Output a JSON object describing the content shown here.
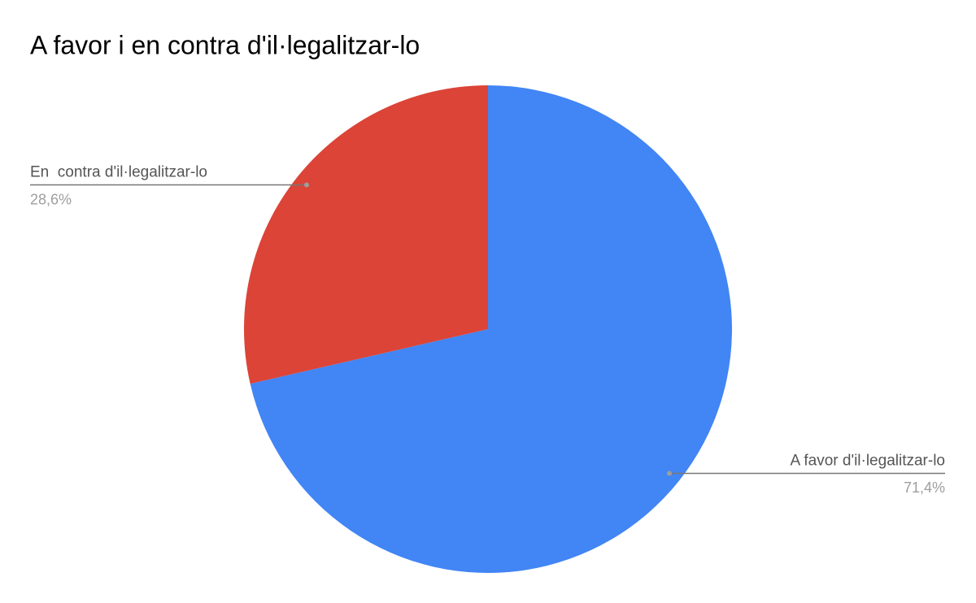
{
  "chart_data": {
    "type": "pie",
    "title": "A favor i en contra d'il·legalitzar-lo",
    "categories": [
      "A favor d'il·legalitzar-lo",
      "En  contra d'il·legalitzar-lo"
    ],
    "values": [
      71.4,
      28.6
    ],
    "value_labels": [
      "71,4%",
      "28,6%"
    ],
    "colors": [
      "#4285f4",
      "#db4437"
    ]
  }
}
